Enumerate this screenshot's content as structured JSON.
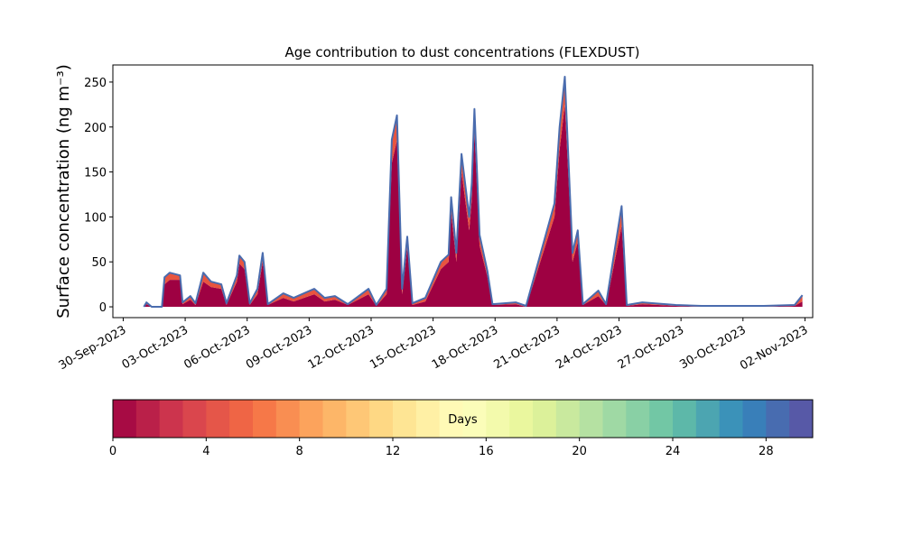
{
  "chart_data": {
    "type": "stacked_area",
    "title": "Age contribution to dust concentrations (FLEXDUST)",
    "ylabel": "Surface concentration (ng m⁻³)",
    "x": [
      "2023-10-01T00:00",
      "2023-10-01T03:00",
      "2023-10-01T09:00",
      "2023-10-01T21:00",
      "2023-10-02T00:00",
      "2023-10-02T06:00",
      "2023-10-02T18:00",
      "2023-10-02T21:00",
      "2023-10-03T06:00",
      "2023-10-03T12:00",
      "2023-10-03T21:00",
      "2023-10-04T06:00",
      "2023-10-04T18:00",
      "2023-10-05T00:00",
      "2023-10-05T12:00",
      "2023-10-05T15:00",
      "2023-10-05T21:00",
      "2023-10-06T03:00",
      "2023-10-06T12:00",
      "2023-10-06T18:00",
      "2023-10-07T00:00",
      "2023-10-07T18:00",
      "2023-10-08T06:00",
      "2023-10-08T18:00",
      "2023-10-09T06:00",
      "2023-10-09T18:00",
      "2023-10-10T06:00",
      "2023-10-10T21:00",
      "2023-10-11T21:00",
      "2023-10-12T06:00",
      "2023-10-12T18:00",
      "2023-10-13T00:00",
      "2023-10-13T06:00",
      "2023-10-13T12:00",
      "2023-10-13T18:00",
      "2023-10-14T00:00",
      "2023-10-14T15:00",
      "2023-10-15T09:00",
      "2023-10-15T18:00",
      "2023-10-15T21:00",
      "2023-10-16T03:00",
      "2023-10-16T09:00",
      "2023-10-16T18:00",
      "2023-10-16T21:00",
      "2023-10-17T00:00",
      "2023-10-17T06:00",
      "2023-10-17T15:00",
      "2023-10-17T21:00",
      "2023-10-19T00:00",
      "2023-10-19T12:00",
      "2023-10-20T21:00",
      "2023-10-21T03:00",
      "2023-10-21T09:00",
      "2023-10-21T18:00",
      "2023-10-22T00:00",
      "2023-10-22T06:00",
      "2023-10-23T00:00",
      "2023-10-23T09:00",
      "2023-10-24T03:00",
      "2023-10-24T09:00",
      "2023-10-25T03:00",
      "2023-10-26T18:00",
      "2023-10-28T00:00",
      "2023-10-31T00:00",
      "2023-11-01T12:00",
      "2023-11-01T21:00"
    ],
    "series": [
      {
        "color": "#9e0142",
        "values": [
          0,
          3,
          0,
          0,
          25,
          30,
          30,
          3,
          8,
          2,
          28,
          22,
          20,
          2,
          28,
          48,
          42,
          2,
          14,
          50,
          2,
          10,
          6,
          10,
          14,
          6,
          8,
          2,
          14,
          1,
          14,
          160,
          185,
          14,
          66,
          2,
          6,
          42,
          50,
          105,
          50,
          150,
          85,
          120,
          195,
          68,
          34,
          2,
          3,
          0,
          100,
          175,
          225,
          50,
          72,
          2,
          12,
          2,
          90,
          1,
          3,
          1,
          0,
          0,
          1,
          6
        ]
      },
      {
        "color": "#e8553f",
        "values": [
          0,
          2,
          0,
          0,
          8,
          8,
          5,
          2,
          4,
          2,
          10,
          6,
          5,
          2,
          7,
          9,
          8,
          2,
          6,
          10,
          1,
          5,
          4,
          5,
          6,
          4,
          4,
          1,
          6,
          1,
          6,
          26,
          28,
          6,
          12,
          2,
          4,
          8,
          8,
          17,
          10,
          20,
          15,
          18,
          25,
          12,
          6,
          1,
          2,
          1,
          15,
          25,
          31,
          10,
          13,
          1,
          6,
          1,
          22,
          1,
          2,
          1,
          1,
          1,
          1,
          7
        ]
      }
    ],
    "outline_color": "#4a6cae",
    "xlim": [
      "2023-09-29T12:00",
      "2023-11-02T09:00"
    ],
    "xticks": [
      {
        "value": "2023-09-30T00:00",
        "label": "30-Sep-2023"
      },
      {
        "value": "2023-10-03T00:00",
        "label": "03-Oct-2023"
      },
      {
        "value": "2023-10-06T00:00",
        "label": "06-Oct-2023"
      },
      {
        "value": "2023-10-09T00:00",
        "label": "09-Oct-2023"
      },
      {
        "value": "2023-10-12T00:00",
        "label": "12-Oct-2023"
      },
      {
        "value": "2023-10-15T00:00",
        "label": "15-Oct-2023"
      },
      {
        "value": "2023-10-18T00:00",
        "label": "18-Oct-2023"
      },
      {
        "value": "2023-10-21T00:00",
        "label": "21-Oct-2023"
      },
      {
        "value": "2023-10-24T00:00",
        "label": "24-Oct-2023"
      },
      {
        "value": "2023-10-27T00:00",
        "label": "27-Oct-2023"
      },
      {
        "value": "2023-10-30T00:00",
        "label": "30-Oct-2023"
      },
      {
        "value": "2023-11-02T00:00",
        "label": "02-Nov-2023"
      }
    ],
    "ylim": [
      -12,
      269
    ],
    "yticks": [
      0,
      50,
      100,
      150,
      200,
      250
    ],
    "colorbar": {
      "label": "Days",
      "lim": [
        0,
        30
      ],
      "ticks": [
        0,
        4,
        8,
        12,
        16,
        20,
        24,
        28
      ],
      "n_colors": 30,
      "colormap": [
        "#9e0142",
        "#d53e4f",
        "#f46d43",
        "#fdae61",
        "#fee08b",
        "#ffffbf",
        "#e6f598",
        "#abdda4",
        "#66c2a5",
        "#3288bd",
        "#5e4fa2"
      ]
    }
  }
}
